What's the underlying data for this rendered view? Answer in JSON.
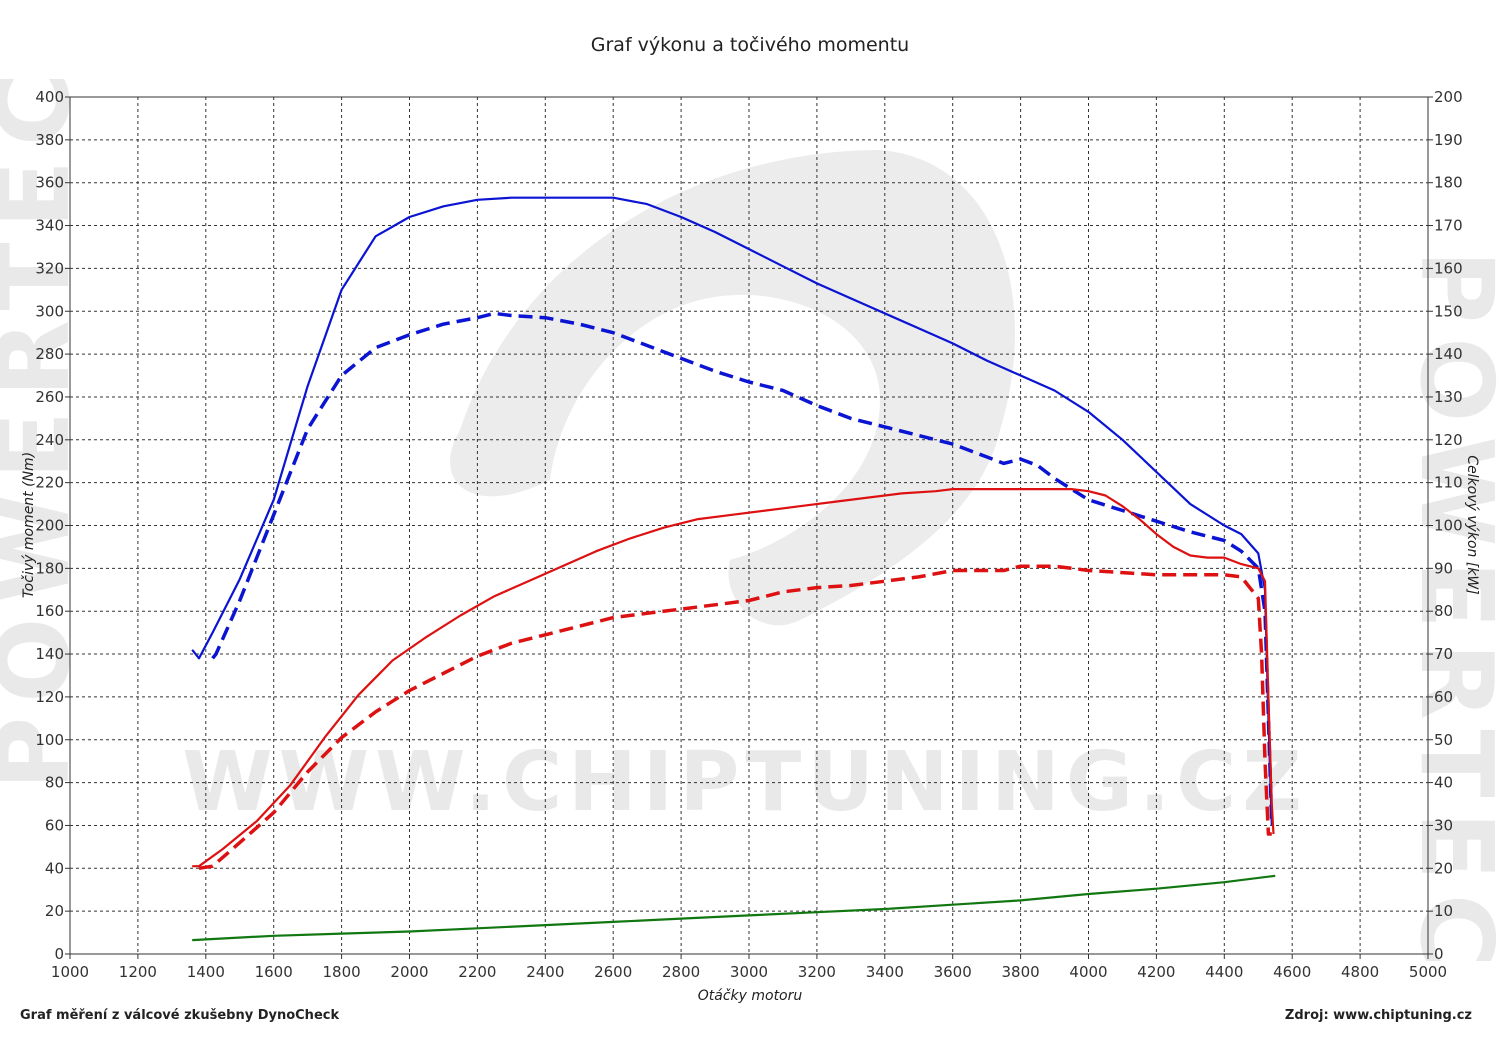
{
  "title": "Graf výkonu a točivého momentu",
  "footer": {
    "left": "Graf měření z válcové zkušebny DynoCheck",
    "right": "Zdroj: www.chiptuning.cz"
  },
  "watermark": {
    "main": "WWW.CHIPTUNING.CZ",
    "side": "POWERTEC"
  },
  "colors": {
    "torque": "#0a14d2",
    "power": "#dd1111",
    "loss": "#117711",
    "grid": "#333333",
    "watermark": "#e9e9e9"
  },
  "chart_data": {
    "type": "line",
    "title": "Graf výkonu a točivého momentu",
    "xlabel": "Otáčky motoru",
    "ylabel": "Točivý moment (Nm)",
    "y2label": "Celkový výkon [kW]",
    "xlim": [
      1000,
      5000
    ],
    "ylim": [
      0,
      400
    ],
    "y2lim": [
      0,
      200
    ],
    "xticks": [
      1000,
      1200,
      1400,
      1600,
      1800,
      2000,
      2200,
      2400,
      2600,
      2800,
      3000,
      3200,
      3400,
      3600,
      3800,
      4000,
      4200,
      4400,
      4600,
      4800,
      5000
    ],
    "yticks": [
      0,
      20,
      40,
      60,
      80,
      100,
      120,
      140,
      160,
      180,
      200,
      220,
      240,
      260,
      280,
      300,
      320,
      340,
      360,
      380,
      400
    ],
    "y2ticks": [
      0,
      10,
      20,
      30,
      40,
      50,
      60,
      70,
      80,
      90,
      100,
      110,
      120,
      130,
      140,
      150,
      160,
      170,
      180,
      190,
      200
    ],
    "grid": true,
    "series": [
      {
        "axis": "left",
        "style": "solid",
        "color": "#0a14d2",
        "x": [
          1360,
          1380,
          1420,
          1500,
          1600,
          1700,
          1800,
          1900,
          2000,
          2100,
          2200,
          2300,
          2400,
          2500,
          2600,
          2700,
          2800,
          2900,
          3000,
          3100,
          3200,
          3300,
          3400,
          3500,
          3600,
          3700,
          3800,
          3900,
          4000,
          4100,
          4200,
          4300,
          4400,
          4450,
          4500,
          4520,
          4530,
          4540
        ],
        "y": [
          142,
          138,
          150,
          175,
          212,
          265,
          310,
          335,
          344,
          349,
          352,
          353,
          353,
          353,
          353,
          350,
          344,
          337,
          329,
          321,
          313,
          306,
          299,
          292,
          285,
          277,
          270,
          263,
          253,
          240,
          225,
          210,
          200,
          196,
          187,
          170,
          110,
          60
        ]
      },
      {
        "axis": "left",
        "style": "dashed",
        "color": "#0a14d2",
        "x": [
          1420,
          1430,
          1500,
          1600,
          1700,
          1800,
          1900,
          2000,
          2100,
          2200,
          2250,
          2300,
          2400,
          2500,
          2600,
          2700,
          2800,
          2900,
          3000,
          3100,
          3200,
          3300,
          3400,
          3500,
          3600,
          3700,
          3750,
          3800,
          3850,
          3900,
          4000,
          4100,
          4200,
          4300,
          4400,
          4450,
          4500,
          4520,
          4530,
          4540
        ],
        "y": [
          138,
          140,
          165,
          205,
          245,
          270,
          283,
          289,
          294,
          297,
          299,
          298,
          297,
          294,
          290,
          284,
          278,
          272,
          267,
          263,
          256,
          250,
          246,
          242,
          238,
          232,
          229,
          231,
          228,
          222,
          212,
          207,
          202,
          197,
          193,
          188,
          180,
          160,
          110,
          60
        ]
      },
      {
        "axis": "right",
        "style": "solid",
        "color": "#dd1111",
        "x": [
          1360,
          1380,
          1450,
          1550,
          1650,
          1750,
          1850,
          1950,
          2050,
          2150,
          2250,
          2350,
          2450,
          2550,
          2650,
          2750,
          2850,
          2950,
          3050,
          3150,
          3250,
          3350,
          3450,
          3550,
          3600,
          3650,
          3700,
          3750,
          3800,
          3850,
          3900,
          3950,
          4000,
          4050,
          4100,
          4150,
          4200,
          4250,
          4300,
          4350,
          4400,
          4450,
          4500,
          4520,
          4530,
          4540,
          4545
        ],
        "y": [
          20.5,
          20.5,
          24.5,
          31,
          39.5,
          50.5,
          60.5,
          68.5,
          74,
          79,
          83.5,
          87,
          90.5,
          94,
          97,
          99.5,
          101.5,
          102.5,
          103.5,
          104.5,
          105.5,
          106.5,
          107.5,
          108,
          108.5,
          108.5,
          108.5,
          108.5,
          108.5,
          108.5,
          108.5,
          108.5,
          108,
          107,
          104.5,
          101.5,
          98,
          95,
          93,
          92.5,
          92.5,
          91,
          90,
          87,
          60,
          35,
          28
        ]
      },
      {
        "axis": "right",
        "style": "dashed",
        "color": "#dd1111",
        "x": [
          1380,
          1420,
          1500,
          1600,
          1700,
          1800,
          1900,
          2000,
          2100,
          2200,
          2300,
          2400,
          2500,
          2600,
          2700,
          2800,
          2900,
          3000,
          3100,
          3200,
          3300,
          3400,
          3500,
          3600,
          3650,
          3700,
          3750,
          3800,
          3850,
          3900,
          3950,
          4000,
          4100,
          4200,
          4300,
          4400,
          4450,
          4500,
          4510,
          4520,
          4530,
          4540
        ],
        "y": [
          20,
          20.5,
          26,
          33,
          42.5,
          50.5,
          56.5,
          61.5,
          65.5,
          69.5,
          72.5,
          74.5,
          76.5,
          78.5,
          79.5,
          80.5,
          81.5,
          82.5,
          84.5,
          85.5,
          86,
          87,
          88,
          89.5,
          89.5,
          89.5,
          89.5,
          90.5,
          90.5,
          90.5,
          90,
          89.5,
          89,
          88.5,
          88.5,
          88.5,
          88,
          83,
          70,
          45,
          28,
          28
        ]
      },
      {
        "axis": "left",
        "style": "solid",
        "color": "#117711",
        "x": [
          1360,
          1600,
          1800,
          2000,
          2200,
          2400,
          2600,
          2800,
          3000,
          3200,
          3400,
          3600,
          3800,
          4000,
          4200,
          4400,
          4550
        ],
        "y": [
          6.5,
          8.5,
          9.5,
          10.5,
          12,
          13.5,
          15,
          16.5,
          18,
          19.5,
          21,
          23,
          25,
          28,
          30.5,
          33.5,
          36.5
        ]
      }
    ]
  }
}
